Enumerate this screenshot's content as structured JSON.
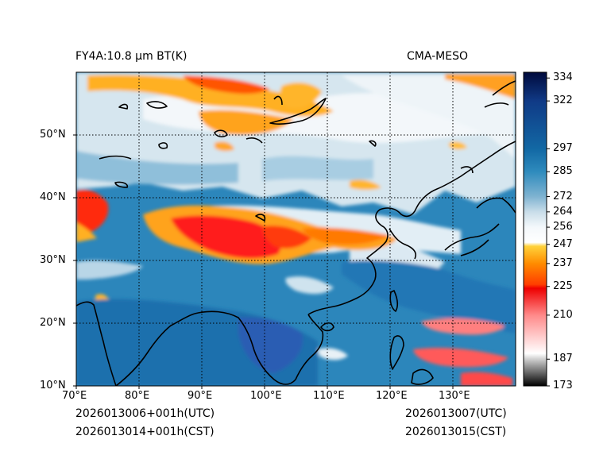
{
  "title_left": "FY4A:10.8 µm BT(K)",
  "title_right": "CMA-MESO",
  "footer": {
    "left_line1": "2026013006+001h(UTC)",
    "left_line2": "2026013014+001h(CST)",
    "right_line1": "2026013007(UTC)",
    "right_line2": "2026013015(CST)"
  },
  "map": {
    "variable": "Brightness temperature 10.8 µm",
    "units": "K",
    "extent": {
      "lon_min": 70,
      "lon_max": 140,
      "lat_min": 10,
      "lat_max": 60
    },
    "lon_ticks": [
      {
        "value": 70,
        "label": "70°E"
      },
      {
        "value": 80,
        "label": "80°E"
      },
      {
        "value": 90,
        "label": "90°E"
      },
      {
        "value": 100,
        "label": "100°E"
      },
      {
        "value": 110,
        "label": "110°E"
      },
      {
        "value": 120,
        "label": "120°E"
      },
      {
        "value": 130,
        "label": "130°E"
      }
    ],
    "lat_ticks": [
      {
        "value": 10,
        "label": "10°N"
      },
      {
        "value": 20,
        "label": "20°N"
      },
      {
        "value": 30,
        "label": "30°N"
      },
      {
        "value": 40,
        "label": "40°N"
      },
      {
        "value": 50,
        "label": "50°N"
      }
    ],
    "gridlines": "dotted"
  },
  "colorbar": {
    "min": 173,
    "max": 337,
    "tick_values": [
      173,
      187,
      210,
      225,
      237,
      247,
      256,
      264,
      272,
      285,
      297,
      322,
      334
    ],
    "stops": [
      {
        "value": 173,
        "color": "#000000"
      },
      {
        "value": 187,
        "color": "#cfcfcf"
      },
      {
        "value": 190,
        "color": "#ffffff"
      },
      {
        "value": 210,
        "color": "#ff8a8a"
      },
      {
        "value": 224,
        "color": "#ee0000"
      },
      {
        "value": 226,
        "color": "#ff3d00"
      },
      {
        "value": 237,
        "color": "#ff8c00"
      },
      {
        "value": 246,
        "color": "#ffd23a"
      },
      {
        "value": 248,
        "color": "#ffffff"
      },
      {
        "value": 256,
        "color": "#f4f8fb"
      },
      {
        "value": 264,
        "color": "#c9dde9"
      },
      {
        "value": 272,
        "color": "#7fb3d1"
      },
      {
        "value": 285,
        "color": "#2f8bbd"
      },
      {
        "value": 297,
        "color": "#1268a4"
      },
      {
        "value": 322,
        "color": "#103a86"
      },
      {
        "value": 337,
        "color": "#000a3c"
      }
    ]
  }
}
